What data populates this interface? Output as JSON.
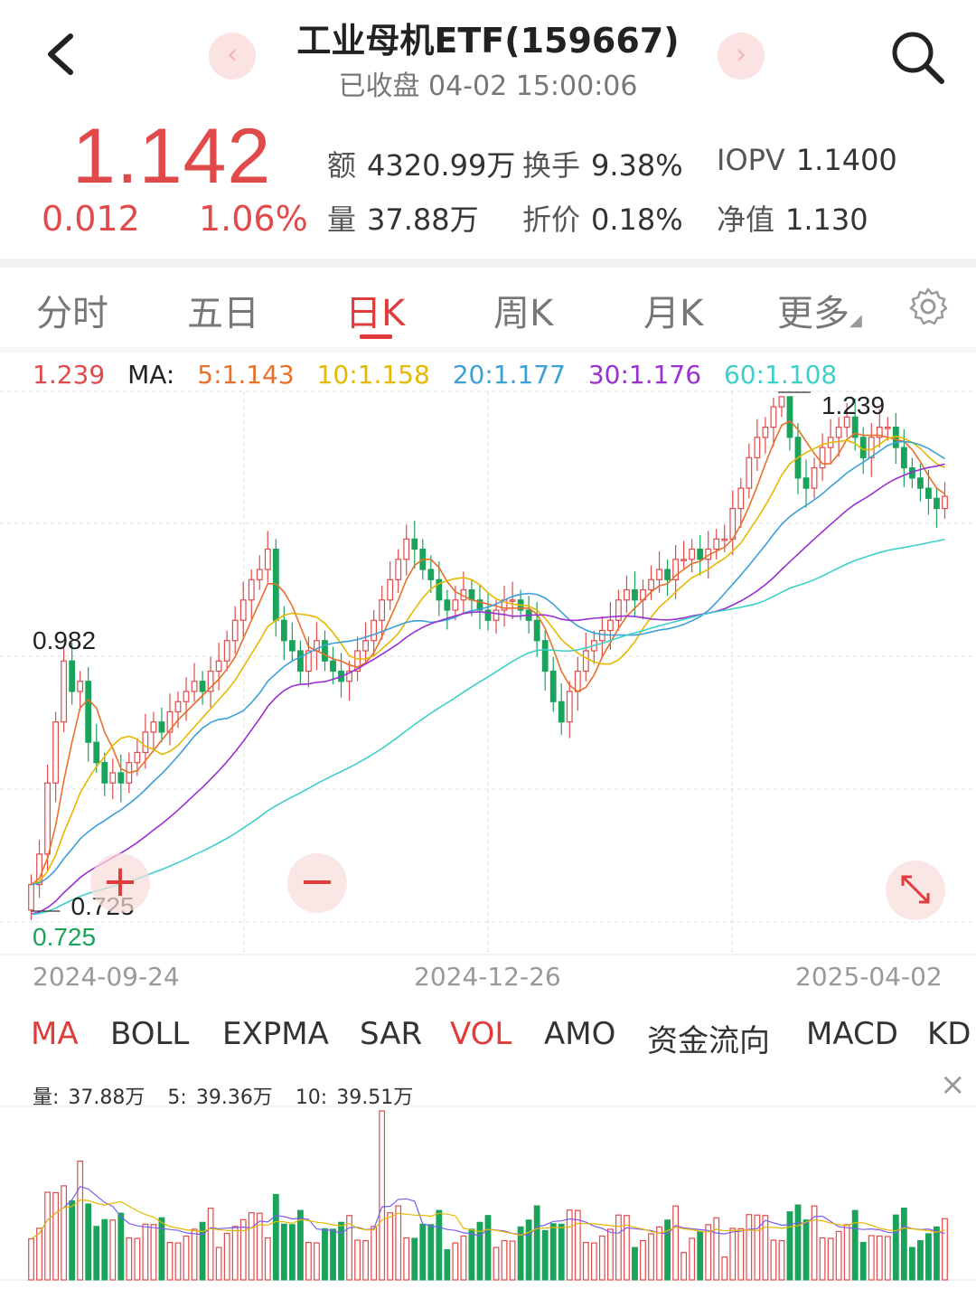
{
  "header": {
    "title": "工业母机ETF(159667)",
    "subtitle": "已收盘 04-02 15:00:06",
    "prev_glyph": "‹",
    "next_glyph": "›"
  },
  "quote": {
    "price": "1.142",
    "change": "0.012",
    "change_pct": "1.06%",
    "amount_label": "额",
    "amount": "4320.99万",
    "turnover_label": "换手",
    "turnover": "9.38%",
    "iopv_label": "IOPV",
    "iopv": "1.1400",
    "volume_label": "量",
    "volume": "37.88万",
    "discount_label": "折价",
    "discount": "0.18%",
    "nav_label": "净值",
    "nav": "1.130",
    "up_color": "#e14a4a"
  },
  "tabs": [
    "分时",
    "五日",
    "日K",
    "周K",
    "月K",
    "更多"
  ],
  "active_tab": "日K",
  "ma_legend": {
    "price": "1.239",
    "label": "MA:",
    "ma5": "5:1.143",
    "ma10": "10:1.158",
    "ma20": "20:1.177",
    "ma30": "30:1.176",
    "ma60": "60:1.108"
  },
  "colors": {
    "up": "#e14a4a",
    "down": "#1aa35a",
    "ma5": "#e8702a",
    "ma10": "#e6b800",
    "ma20": "#3aa0d8",
    "ma30": "#9b30d0",
    "ma60": "#3ed0c8"
  },
  "chart_labels": {
    "high": "1.239",
    "low_mark": "0.725",
    "mid_mark": "0.982",
    "axis_min": "0.725"
  },
  "dates": [
    "2024-09-24",
    "2024-12-26",
    "2025-04-02"
  ],
  "floating": {
    "zoom_in": "+",
    "zoom_out": "−"
  },
  "indicator_tabs": [
    "MA",
    "BOLL",
    "EXPMA",
    "SAR",
    "VOL",
    "AMO",
    "资金流向",
    "MACD",
    "KD"
  ],
  "active_indicators": [
    "MA",
    "VOL"
  ],
  "volume_info": {
    "label": "量:",
    "value": "37.88万",
    "ma5_label": "5:",
    "ma5": "39.36万",
    "ma10_label": "10:",
    "ma10": "39.51万"
  },
  "close_glyph": "×",
  "chart_data": {
    "type": "candlestick",
    "title": "",
    "x_start": "2024-09-24",
    "x_end": "2025-04-02",
    "y_range": [
      0.725,
      1.239
    ],
    "high": 1.239,
    "low": 0.725,
    "close": [
      0.76,
      0.79,
      0.86,
      0.92,
      0.98,
      0.95,
      0.96,
      0.9,
      0.88,
      0.86,
      0.87,
      0.86,
      0.88,
      0.89,
      0.91,
      0.92,
      0.91,
      0.93,
      0.94,
      0.95,
      0.96,
      0.95,
      0.97,
      0.98,
      1.0,
      1.02,
      1.04,
      1.06,
      1.07,
      1.09,
      1.02,
      1.0,
      0.99,
      0.97,
      0.99,
      1.0,
      0.98,
      0.97,
      0.96,
      0.97,
      0.99,
      1.0,
      1.02,
      1.04,
      1.06,
      1.08,
      1.1,
      1.09,
      1.07,
      1.06,
      1.04,
      1.03,
      1.04,
      1.05,
      1.04,
      1.03,
      1.02,
      1.03,
      1.04,
      1.04,
      1.03,
      1.02,
      1.0,
      0.97,
      0.94,
      0.92,
      0.95,
      0.97,
      0.99,
      1.0,
      1.01,
      1.02,
      1.04,
      1.05,
      1.04,
      1.05,
      1.06,
      1.07,
      1.06,
      1.08,
      1.08,
      1.09,
      1.08,
      1.09,
      1.1,
      1.1,
      1.13,
      1.15,
      1.18,
      1.2,
      1.21,
      1.23,
      1.24,
      1.2,
      1.16,
      1.15,
      1.17,
      1.19,
      1.2,
      1.21,
      1.22,
      1.2,
      1.18,
      1.2,
      1.21,
      1.21,
      1.19,
      1.17,
      1.16,
      1.15,
      1.14,
      1.13,
      1.142
    ],
    "ma_last": {
      "ma5": 1.143,
      "ma10": 1.158,
      "ma20": 1.177,
      "ma30": 1.176,
      "ma60": 1.108
    },
    "volume_last": "37.88万",
    "volume_ma5": "39.36万",
    "volume_ma10": "39.51万"
  }
}
